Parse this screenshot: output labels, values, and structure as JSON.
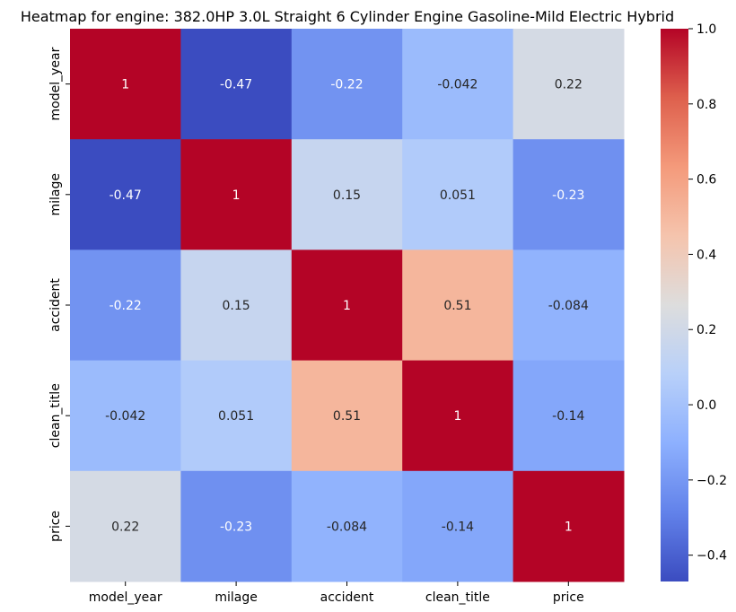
{
  "chart_data": {
    "type": "heatmap",
    "title": "Heatmap for engine: 382.0HP 3.0L Straight 6 Cylinder Engine Gasoline-Mild Electric Hybrid",
    "x_labels": [
      "model_year",
      "milage",
      "accident",
      "clean_title",
      "price"
    ],
    "y_labels": [
      "model_year",
      "milage",
      "accident",
      "clean_title",
      "price"
    ],
    "values": [
      [
        1,
        -0.47,
        -0.22,
        -0.042,
        0.22
      ],
      [
        -0.47,
        1,
        0.15,
        0.051,
        -0.23
      ],
      [
        -0.22,
        0.15,
        1,
        0.51,
        -0.084
      ],
      [
        -0.042,
        0.051,
        0.51,
        1,
        -0.14
      ],
      [
        0.22,
        -0.23,
        -0.084,
        -0.14,
        1
      ]
    ],
    "value_labels": [
      [
        "1",
        "-0.47",
        "-0.22",
        "-0.042",
        "0.22"
      ],
      [
        "-0.47",
        "1",
        "0.15",
        "0.051",
        "-0.23"
      ],
      [
        "-0.22",
        "0.15",
        "1",
        "0.51",
        "-0.084"
      ],
      [
        "-0.042",
        "0.051",
        "0.51",
        "1",
        "-0.14"
      ],
      [
        "0.22",
        "-0.23",
        "-0.084",
        "-0.14",
        "1"
      ]
    ],
    "colormap": "coolwarm",
    "vmin": -0.47,
    "vmax": 1.0,
    "colorbar_ticks": [
      1.0,
      0.8,
      0.6,
      0.4,
      0.2,
      0.0,
      -0.2,
      -0.4
    ],
    "colorbar_tick_labels": [
      "1.0",
      "0.8",
      "0.6",
      "0.4",
      "0.2",
      "0.0",
      "−0.2",
      "−0.4"
    ],
    "grid": false,
    "legend": "colorbar-right"
  }
}
